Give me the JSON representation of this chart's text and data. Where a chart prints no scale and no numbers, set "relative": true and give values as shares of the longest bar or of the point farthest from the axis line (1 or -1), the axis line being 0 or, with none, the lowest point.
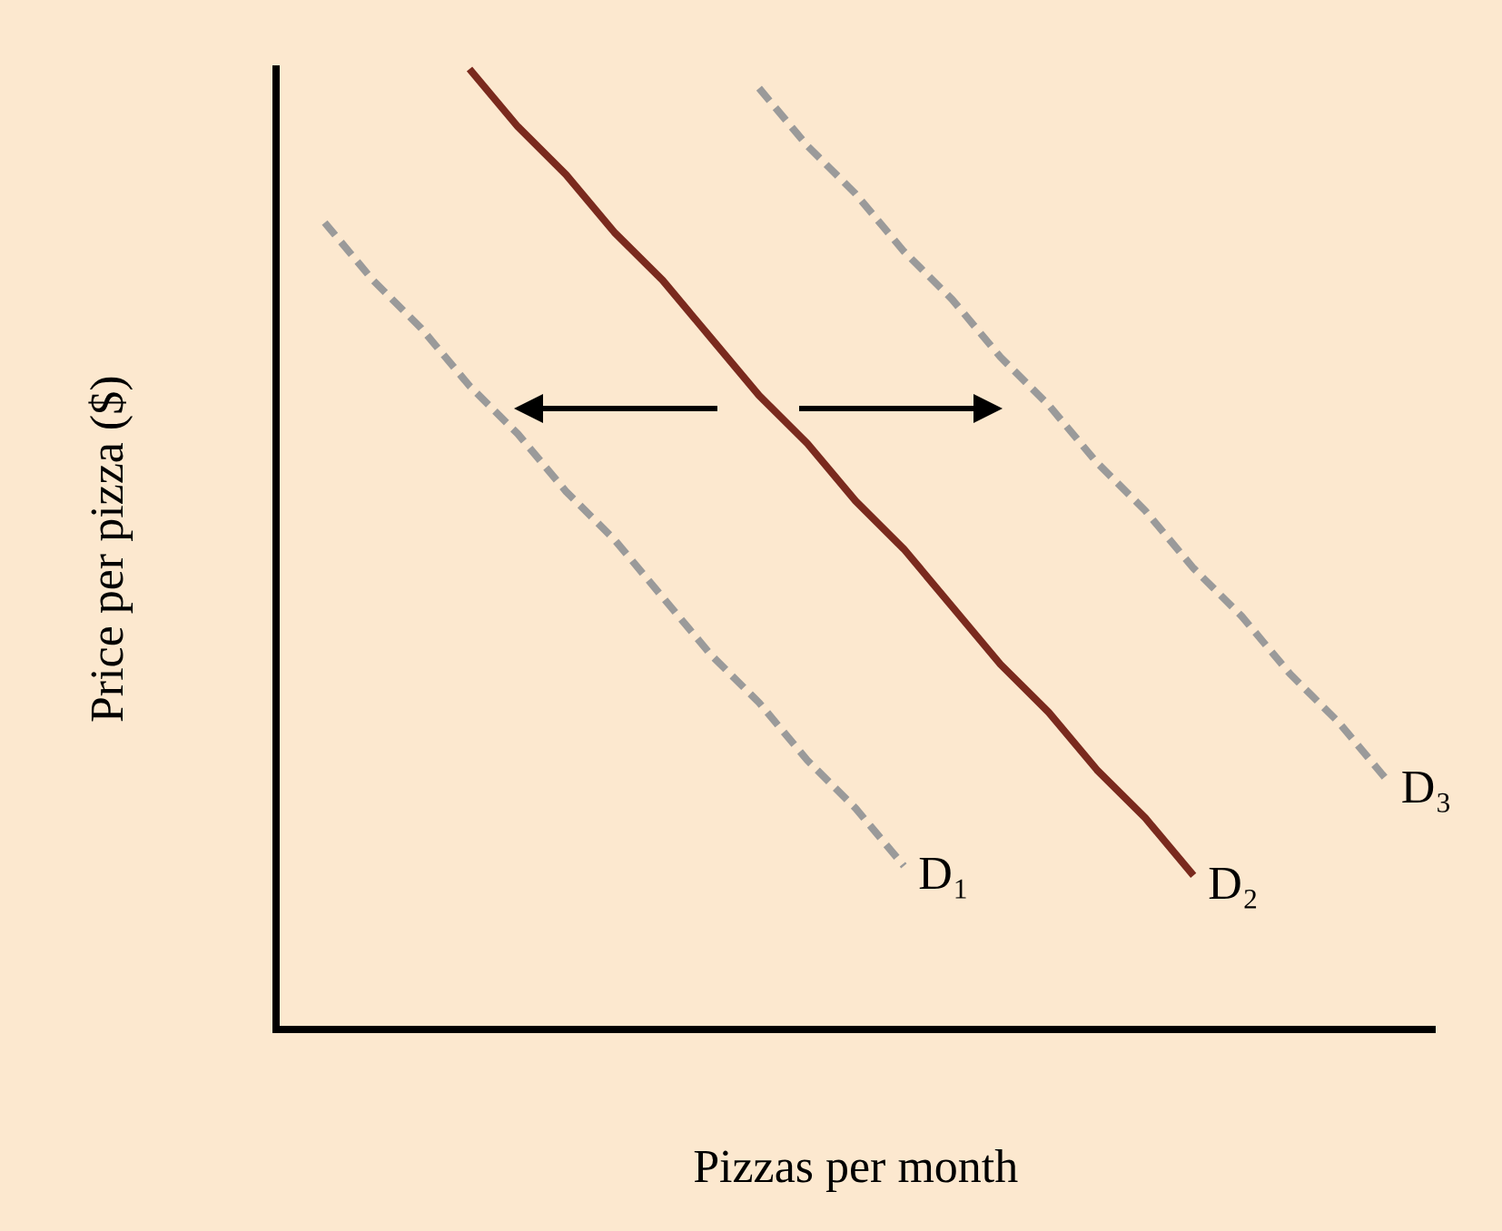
{
  "chart_data": {
    "type": "line",
    "relative": true,
    "xlabel": "Pizzas per month",
    "ylabel": "Price per pizza ($)",
    "legend": false,
    "grid": false,
    "marker": "none",
    "categories": [
      null,
      null,
      null,
      null,
      null,
      null,
      null,
      null,
      null,
      null,
      null,
      null,
      null,
      null,
      null,
      null,
      null,
      null,
      null,
      null,
      null,
      null,
      null,
      null,
      null
    ],
    "series": [
      {
        "name": "D₁",
        "color": "#9a9a9a",
        "line_style": "dashed",
        "values": [
          null,
          0.84,
          0.78,
          0.73,
          0.67,
          0.62,
          0.56,
          0.51,
          0.45,
          0.39,
          0.34,
          0.28,
          0.23,
          0.17,
          null,
          null,
          null,
          null,
          null,
          null,
          null,
          null,
          null,
          null,
          null
        ]
      },
      {
        "name": "D₂",
        "color": "#7a2a1e",
        "line_style": "solid",
        "values": [
          null,
          null,
          null,
          null,
          1.0,
          0.94,
          0.89,
          0.83,
          0.78,
          0.72,
          0.66,
          0.61,
          0.55,
          0.5,
          0.44,
          0.38,
          0.33,
          0.27,
          0.22,
          0.16,
          null,
          null,
          null,
          null,
          null
        ]
      },
      {
        "name": "D₃",
        "color": "#9a9a9a",
        "line_style": "dashed",
        "values": [
          null,
          null,
          null,
          null,
          null,
          null,
          null,
          null,
          null,
          null,
          0.98,
          0.92,
          0.87,
          0.81,
          0.76,
          0.7,
          0.65,
          0.59,
          0.54,
          0.48,
          0.43,
          0.37,
          0.32,
          0.26,
          null
        ]
      }
    ]
  }
}
